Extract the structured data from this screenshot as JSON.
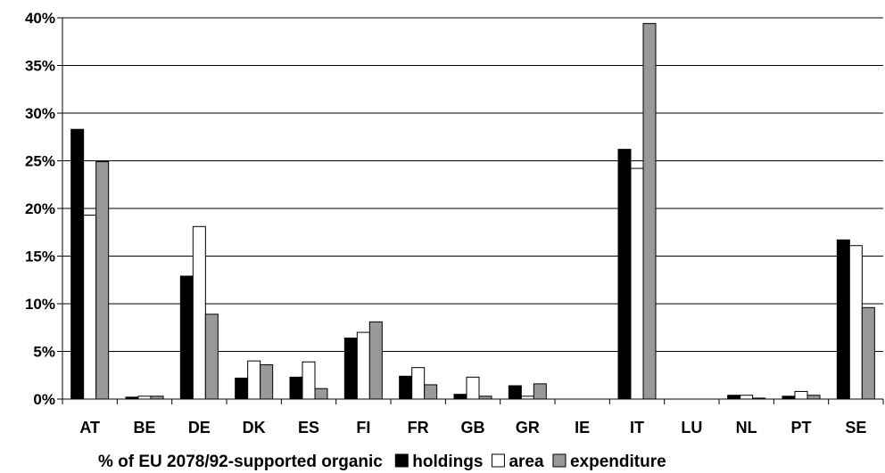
{
  "chart_data": {
    "type": "bar",
    "title": "",
    "xlabel": "% of EU 2078/92-supported organic",
    "ylabel": "",
    "ylim": [
      0,
      40
    ],
    "yticks": [
      "0%",
      "5%",
      "10%",
      "15%",
      "20%",
      "25%",
      "30%",
      "35%",
      "40%"
    ],
    "grid": true,
    "legend_position": "bottom",
    "categories": [
      "AT",
      "BE",
      "DE",
      "DK",
      "ES",
      "FI",
      "FR",
      "GB",
      "GR",
      "IE",
      "IT",
      "LU",
      "NL",
      "PT",
      "SE"
    ],
    "series": [
      {
        "name": "holdings",
        "color": "#000000",
        "values": [
          28.3,
          0.2,
          12.9,
          2.2,
          2.3,
          6.4,
          2.4,
          0.5,
          1.4,
          0,
          26.2,
          0,
          0.4,
          0.3,
          16.7
        ]
      },
      {
        "name": "area",
        "color": "#ffffff",
        "values": [
          19.3,
          0.3,
          18.1,
          4.0,
          3.9,
          7.0,
          3.3,
          2.3,
          0.3,
          0,
          24.2,
          0,
          0.4,
          0.8,
          16.1
        ]
      },
      {
        "name": "expenditure",
        "color": "#999999",
        "values": [
          24.9,
          0.3,
          8.9,
          3.6,
          1.1,
          8.1,
          1.5,
          0.3,
          1.6,
          0,
          39.4,
          0,
          0.1,
          0.4,
          9.6
        ]
      }
    ]
  }
}
